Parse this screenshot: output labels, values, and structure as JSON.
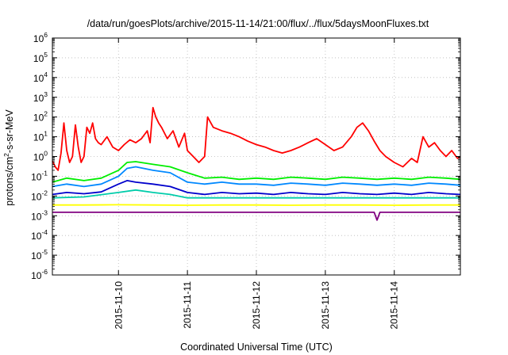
{
  "chart_data": {
    "type": "line",
    "title": "/data/run/goesPlots/archive/2015-11-14/21:00/flux/../flux/5daysMoonFluxes.txt",
    "xlabel": "Coordinated Universal Time (UTC)",
    "ylabel": {
      "prefix": "protons/cm",
      "sup": "2",
      "suffix": "-s-sr-MeV"
    },
    "y_scale": "log",
    "ylim": [
      1e-06,
      1000000.0
    ],
    "y_ticks": [
      {
        "base": "10",
        "exp": "-6"
      },
      {
        "base": "10",
        "exp": "-5"
      },
      {
        "base": "10",
        "exp": "-4"
      },
      {
        "base": "10",
        "exp": "-3"
      },
      {
        "base": "10",
        "exp": "-2"
      },
      {
        "base": "10",
        "exp": "-1"
      },
      {
        "base": "10",
        "exp": "0"
      },
      {
        "base": "10",
        "exp": "1"
      },
      {
        "base": "10",
        "exp": "2"
      },
      {
        "base": "10",
        "exp": "3"
      },
      {
        "base": "10",
        "exp": "4"
      },
      {
        "base": "10",
        "exp": "5"
      },
      {
        "base": "10",
        "exp": "6"
      }
    ],
    "xlim": [
      "2015-11-09T01:00",
      "2015-11-14T23:00"
    ],
    "x_ticks": [
      "2015-11-10",
      "2015-11-11",
      "2015-11-12",
      "2015-11-13",
      "2015-11-14"
    ],
    "grid": true,
    "series": [
      {
        "color": "#ff0000",
        "points": [
          [
            "2015-11-09T01:00",
            0.6
          ],
          [
            "2015-11-09T02:00",
            0.3
          ],
          [
            "2015-11-09T03:00",
            0.2
          ],
          [
            "2015-11-09T04:00",
            1.5
          ],
          [
            "2015-11-09T05:00",
            50
          ],
          [
            "2015-11-09T06:00",
            2
          ],
          [
            "2015-11-09T07:00",
            0.5
          ],
          [
            "2015-11-09T08:00",
            1
          ],
          [
            "2015-11-09T09:00",
            40
          ],
          [
            "2015-11-09T10:00",
            3
          ],
          [
            "2015-11-09T11:00",
            0.5
          ],
          [
            "2015-11-09T12:00",
            1
          ],
          [
            "2015-11-09T13:00",
            30
          ],
          [
            "2015-11-09T14:00",
            15
          ],
          [
            "2015-11-09T15:00",
            50
          ],
          [
            "2015-11-09T16:00",
            8
          ],
          [
            "2015-11-09T17:00",
            5
          ],
          [
            "2015-11-09T18:00",
            4
          ],
          [
            "2015-11-09T20:00",
            10
          ],
          [
            "2015-11-09T22:00",
            3
          ],
          [
            "2015-11-10T00:00",
            2
          ],
          [
            "2015-11-10T02:00",
            4
          ],
          [
            "2015-11-10T04:00",
            7
          ],
          [
            "2015-11-10T06:00",
            5
          ],
          [
            "2015-11-10T08:00",
            8
          ],
          [
            "2015-11-10T10:00",
            20
          ],
          [
            "2015-11-10T11:00",
            5
          ],
          [
            "2015-11-10T12:00",
            300
          ],
          [
            "2015-11-10T13:00",
            100
          ],
          [
            "2015-11-10T14:00",
            50
          ],
          [
            "2015-11-10T15:00",
            30
          ],
          [
            "2015-11-10T17:00",
            8
          ],
          [
            "2015-11-10T19:00",
            20
          ],
          [
            "2015-11-10T21:00",
            3
          ],
          [
            "2015-11-10T23:00",
            15
          ],
          [
            "2015-11-11T00:00",
            2
          ],
          [
            "2015-11-11T02:00",
            1
          ],
          [
            "2015-11-11T04:00",
            0.5
          ],
          [
            "2015-11-11T06:00",
            1
          ],
          [
            "2015-11-11T07:00",
            100
          ],
          [
            "2015-11-11T09:00",
            30
          ],
          [
            "2015-11-11T12:00",
            20
          ],
          [
            "2015-11-11T15:00",
            15
          ],
          [
            "2015-11-11T18:00",
            10
          ],
          [
            "2015-11-11T21:00",
            6
          ],
          [
            "2015-11-12T00:00",
            4
          ],
          [
            "2015-11-12T03:00",
            3
          ],
          [
            "2015-11-12T06:00",
            2
          ],
          [
            "2015-11-12T09:00",
            1.5
          ],
          [
            "2015-11-12T12:00",
            2
          ],
          [
            "2015-11-12T15:00",
            3
          ],
          [
            "2015-11-12T18:00",
            5
          ],
          [
            "2015-11-12T21:00",
            8
          ],
          [
            "2015-11-13T00:00",
            4
          ],
          [
            "2015-11-13T03:00",
            2
          ],
          [
            "2015-11-13T06:00",
            3
          ],
          [
            "2015-11-13T09:00",
            10
          ],
          [
            "2015-11-13T11:00",
            30
          ],
          [
            "2015-11-13T13:00",
            50
          ],
          [
            "2015-11-13T15:00",
            20
          ],
          [
            "2015-11-13T17:00",
            6
          ],
          [
            "2015-11-13T19:00",
            2
          ],
          [
            "2015-11-13T21:00",
            1
          ],
          [
            "2015-11-14T00:00",
            0.5
          ],
          [
            "2015-11-14T03:00",
            0.3
          ],
          [
            "2015-11-14T06:00",
            0.8
          ],
          [
            "2015-11-14T08:00",
            0.5
          ],
          [
            "2015-11-14T10:00",
            10
          ],
          [
            "2015-11-14T12:00",
            3
          ],
          [
            "2015-11-14T14:00",
            5
          ],
          [
            "2015-11-14T16:00",
            2
          ],
          [
            "2015-11-14T18:00",
            1
          ],
          [
            "2015-11-14T20:00",
            2
          ],
          [
            "2015-11-14T22:00",
            0.8
          ],
          [
            "2015-11-14T23:00",
            1
          ]
        ]
      },
      {
        "color": "#00ee00",
        "points": [
          [
            "2015-11-09T01:00",
            0.05
          ],
          [
            "2015-11-09T06:00",
            0.08
          ],
          [
            "2015-11-09T12:00",
            0.06
          ],
          [
            "2015-11-09T18:00",
            0.08
          ],
          [
            "2015-11-10T00:00",
            0.2
          ],
          [
            "2015-11-10T03:00",
            0.5
          ],
          [
            "2015-11-10T06:00",
            0.55
          ],
          [
            "2015-11-10T12:00",
            0.4
          ],
          [
            "2015-11-10T18:00",
            0.3
          ],
          [
            "2015-11-11T00:00",
            0.15
          ],
          [
            "2015-11-11T06:00",
            0.08
          ],
          [
            "2015-11-11T12:00",
            0.09
          ],
          [
            "2015-11-11T18:00",
            0.07
          ],
          [
            "2015-11-12T00:00",
            0.08
          ],
          [
            "2015-11-12T06:00",
            0.07
          ],
          [
            "2015-11-12T12:00",
            0.09
          ],
          [
            "2015-11-12T18:00",
            0.08
          ],
          [
            "2015-11-13T00:00",
            0.07
          ],
          [
            "2015-11-13T06:00",
            0.09
          ],
          [
            "2015-11-13T12:00",
            0.08
          ],
          [
            "2015-11-13T18:00",
            0.07
          ],
          [
            "2015-11-14T00:00",
            0.08
          ],
          [
            "2015-11-14T06:00",
            0.07
          ],
          [
            "2015-11-14T12:00",
            0.09
          ],
          [
            "2015-11-14T18:00",
            0.08
          ],
          [
            "2015-11-14T23:00",
            0.07
          ]
        ]
      },
      {
        "color": "#0088ff",
        "points": [
          [
            "2015-11-09T01:00",
            0.03
          ],
          [
            "2015-11-09T06:00",
            0.04
          ],
          [
            "2015-11-09T12:00",
            0.03
          ],
          [
            "2015-11-09T18:00",
            0.04
          ],
          [
            "2015-11-10T00:00",
            0.1
          ],
          [
            "2015-11-10T03:00",
            0.25
          ],
          [
            "2015-11-10T06:00",
            0.3
          ],
          [
            "2015-11-10T12:00",
            0.2
          ],
          [
            "2015-11-10T18:00",
            0.15
          ],
          [
            "2015-11-11T00:00",
            0.05
          ],
          [
            "2015-11-11T06:00",
            0.04
          ],
          [
            "2015-11-11T12:00",
            0.05
          ],
          [
            "2015-11-11T18:00",
            0.04
          ],
          [
            "2015-11-12T00:00",
            0.04
          ],
          [
            "2015-11-12T06:00",
            0.035
          ],
          [
            "2015-11-12T12:00",
            0.045
          ],
          [
            "2015-11-12T18:00",
            0.04
          ],
          [
            "2015-11-13T00:00",
            0.035
          ],
          [
            "2015-11-13T06:00",
            0.045
          ],
          [
            "2015-11-13T12:00",
            0.04
          ],
          [
            "2015-11-13T18:00",
            0.035
          ],
          [
            "2015-11-14T00:00",
            0.04
          ],
          [
            "2015-11-14T06:00",
            0.035
          ],
          [
            "2015-11-14T12:00",
            0.045
          ],
          [
            "2015-11-14T18:00",
            0.04
          ],
          [
            "2015-11-14T23:00",
            0.035
          ]
        ]
      },
      {
        "color": "#0000cc",
        "points": [
          [
            "2015-11-09T01:00",
            0.012
          ],
          [
            "2015-11-09T06:00",
            0.015
          ],
          [
            "2015-11-09T12:00",
            0.013
          ],
          [
            "2015-11-09T18:00",
            0.016
          ],
          [
            "2015-11-10T00:00",
            0.04
          ],
          [
            "2015-11-10T03:00",
            0.06
          ],
          [
            "2015-11-10T06:00",
            0.05
          ],
          [
            "2015-11-10T12:00",
            0.04
          ],
          [
            "2015-11-10T18:00",
            0.03
          ],
          [
            "2015-11-11T00:00",
            0.015
          ],
          [
            "2015-11-11T06:00",
            0.012
          ],
          [
            "2015-11-11T12:00",
            0.015
          ],
          [
            "2015-11-11T18:00",
            0.013
          ],
          [
            "2015-11-12T00:00",
            0.014
          ],
          [
            "2015-11-12T06:00",
            0.012
          ],
          [
            "2015-11-12T12:00",
            0.015
          ],
          [
            "2015-11-12T18:00",
            0.013
          ],
          [
            "2015-11-13T00:00",
            0.012
          ],
          [
            "2015-11-13T06:00",
            0.015
          ],
          [
            "2015-11-13T12:00",
            0.013
          ],
          [
            "2015-11-13T18:00",
            0.012
          ],
          [
            "2015-11-14T00:00",
            0.014
          ],
          [
            "2015-11-14T06:00",
            0.012
          ],
          [
            "2015-11-14T12:00",
            0.015
          ],
          [
            "2015-11-14T18:00",
            0.013
          ],
          [
            "2015-11-14T23:00",
            0.012
          ]
        ]
      },
      {
        "color": "#00ccaa",
        "points": [
          [
            "2015-11-09T01:00",
            0.008
          ],
          [
            "2015-11-09T12:00",
            0.009
          ],
          [
            "2015-11-10T00:00",
            0.015
          ],
          [
            "2015-11-10T06:00",
            0.02
          ],
          [
            "2015-11-10T12:00",
            0.015
          ],
          [
            "2015-11-10T18:00",
            0.012
          ],
          [
            "2015-11-11T00:00",
            0.008
          ],
          [
            "2015-11-11T12:00",
            0.008
          ],
          [
            "2015-11-12T00:00",
            0.008
          ],
          [
            "2015-11-12T12:00",
            0.008
          ],
          [
            "2015-11-13T00:00",
            0.008
          ],
          [
            "2015-11-13T12:00",
            0.008
          ],
          [
            "2015-11-14T00:00",
            0.008
          ],
          [
            "2015-11-14T12:00",
            0.008
          ],
          [
            "2015-11-14T23:00",
            0.008
          ]
        ]
      },
      {
        "color": "#ffff00",
        "points": [
          [
            "2015-11-09T01:00",
            0.0035
          ],
          [
            "2015-11-09T12:00",
            0.0035
          ],
          [
            "2015-11-10T00:00",
            0.0036
          ],
          [
            "2015-11-10T12:00",
            0.0035
          ],
          [
            "2015-11-11T00:00",
            0.0034
          ],
          [
            "2015-11-11T12:00",
            0.0035
          ],
          [
            "2015-11-12T00:00",
            0.0035
          ],
          [
            "2015-11-12T12:00",
            0.0034
          ],
          [
            "2015-11-13T00:00",
            0.0035
          ],
          [
            "2015-11-13T12:00",
            0.0035
          ],
          [
            "2015-11-14T00:00",
            0.0034
          ],
          [
            "2015-11-14T12:00",
            0.0035
          ],
          [
            "2015-11-14T23:00",
            0.0035
          ]
        ]
      },
      {
        "color": "#800080",
        "points": [
          [
            "2015-11-09T01:00",
            0.0015
          ],
          [
            "2015-11-09T12:00",
            0.0015
          ],
          [
            "2015-11-10T00:00",
            0.0015
          ],
          [
            "2015-11-10T12:00",
            0.0015
          ],
          [
            "2015-11-11T00:00",
            0.0015
          ],
          [
            "2015-11-11T12:00",
            0.0015
          ],
          [
            "2015-11-12T00:00",
            0.0015
          ],
          [
            "2015-11-12T12:00",
            0.0015
          ],
          [
            "2015-11-13T00:00",
            0.0015
          ],
          [
            "2015-11-13T17:00",
            0.0015
          ],
          [
            "2015-11-13T18:00",
            0.0006
          ],
          [
            "2015-11-13T19:00",
            0.0015
          ],
          [
            "2015-11-14T00:00",
            0.0015
          ],
          [
            "2015-11-14T12:00",
            0.0015
          ],
          [
            "2015-11-14T23:00",
            0.0015
          ]
        ]
      }
    ]
  }
}
